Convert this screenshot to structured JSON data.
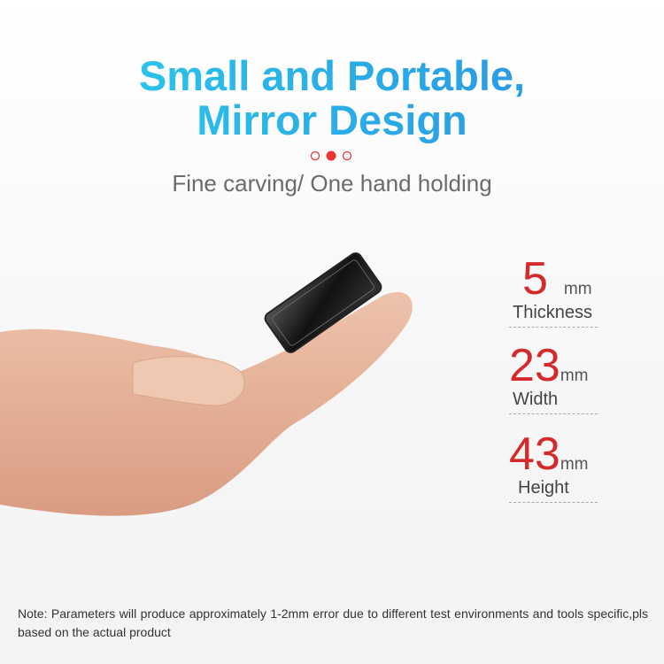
{
  "header": {
    "title_lines": [
      "Small and Portable,",
      "Mirror Design"
    ],
    "subtitle": "Fine carving/ One hand holding"
  },
  "specs": [
    {
      "value": "5",
      "unit": "mm",
      "label": "Thickness"
    },
    {
      "value": "23",
      "unit": "mm",
      "label": "Width"
    },
    {
      "value": "43",
      "unit": "mm",
      "label": "Height"
    }
  ],
  "note": "Note: Parameters will produce approximately 1-2mm error due to different test environments and tools specific,pls based on the actual product"
}
